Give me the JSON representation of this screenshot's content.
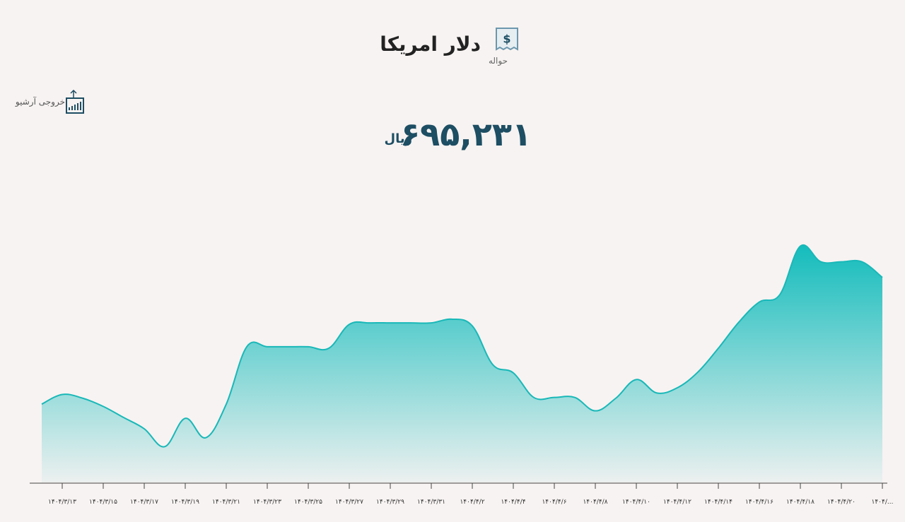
{
  "header": {
    "title": "دلار امریکا",
    "subtitle": "حواله",
    "export_label": "خروجی آرشیو",
    "price": "۶۹۵,۲۳۱",
    "price_unit": "ریال"
  },
  "chart_data": {
    "type": "area",
    "color": "#19b8b8",
    "categories": [
      null,
      "۱۴۰۴/۳/۱۳",
      null,
      "۱۴۰۴/۳/۱۵",
      null,
      "۱۴۰۴/۳/۱۷",
      null,
      "۱۴۰۴/۳/۱۹",
      null,
      "۱۴۰۴/۳/۲۱",
      null,
      "۱۴۰۴/۳/۲۳",
      null,
      "۱۴۰۴/۳/۲۵",
      null,
      "۱۴۰۴/۳/۲۷",
      null,
      "۱۴۰۴/۳/۲۹",
      null,
      "۱۴۰۴/۳/۳۱",
      null,
      "۱۴۰۴/۴/۲",
      null,
      "۱۴۰۴/۴/۴",
      null,
      "۱۴۰۴/۴/۶",
      null,
      "۱۴۰۴/۴/۸",
      null,
      "۱۴۰۴/۴/۱۰",
      null,
      "۱۴۰۴/۴/۱۲",
      null,
      "۱۴۰۴/۴/۱۴",
      null,
      "۱۴۰۴/۴/۱۶",
      null,
      "۱۴۰۴/۴/۱۸",
      null,
      "۱۴۰۴/۴/۲۰",
      null,
      "۱۴۰۴/..."
    ],
    "values": [
      105,
      118,
      113,
      102,
      87,
      72,
      48,
      86,
      60,
      105,
      182,
      182,
      182,
      182,
      180,
      212,
      214,
      214,
      214,
      214,
      219,
      210,
      158,
      147,
      114,
      114,
      114,
      96,
      113,
      138,
      120,
      127,
      148,
      180,
      215,
      242,
      252,
      317,
      296,
      296,
      296,
      275
    ],
    "ylim": [
      0,
      325
    ]
  }
}
